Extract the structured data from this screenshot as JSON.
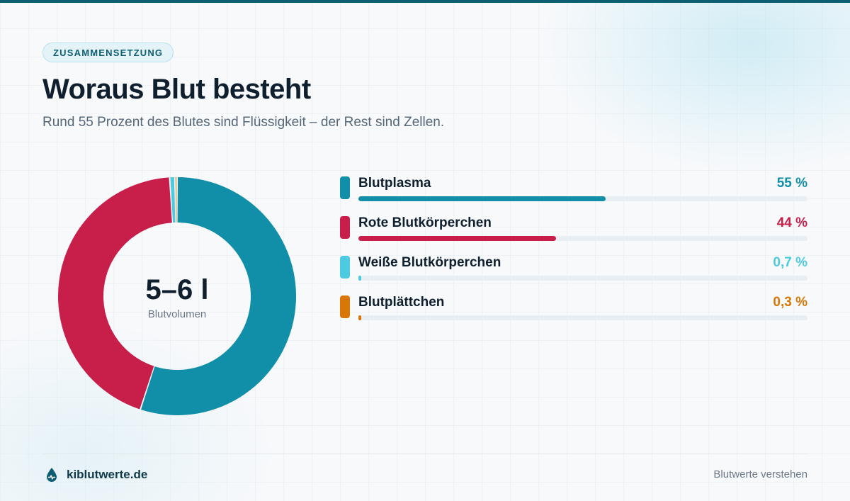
{
  "badge": "ZUSAMMENSETZUNG",
  "title": "Woraus Blut besteht",
  "subtitle": "Rund 55 Prozent des Blutes sind Flüssigkeit – der Rest sind Zellen.",
  "center": {
    "value": "5–6 l",
    "label": "Blutvolumen"
  },
  "chart_data": {
    "type": "pie",
    "title": "Woraus Blut besteht",
    "categories": [
      "Blutplasma",
      "Rote Blutkörperchen",
      "Weiße Blutkörperchen",
      "Blutplättchen"
    ],
    "values": [
      55,
      44,
      0.7,
      0.3
    ],
    "value_labels": [
      "55 %",
      "44 %",
      "0,7 %",
      "0,3 %"
    ],
    "colors": [
      "#118fa8",
      "#c81e4a",
      "#4ccbe0",
      "#d97706"
    ],
    "unit": "%",
    "donut": true,
    "legend": "right"
  },
  "footer": {
    "brand": "kiblutwerte.de",
    "brand_icon": "blood-drop-icon",
    "tagline": "Blutwerte verstehen"
  },
  "colors": {
    "accent": "#0e5e73",
    "text": "#0f1f2e",
    "muted": "#566778"
  }
}
